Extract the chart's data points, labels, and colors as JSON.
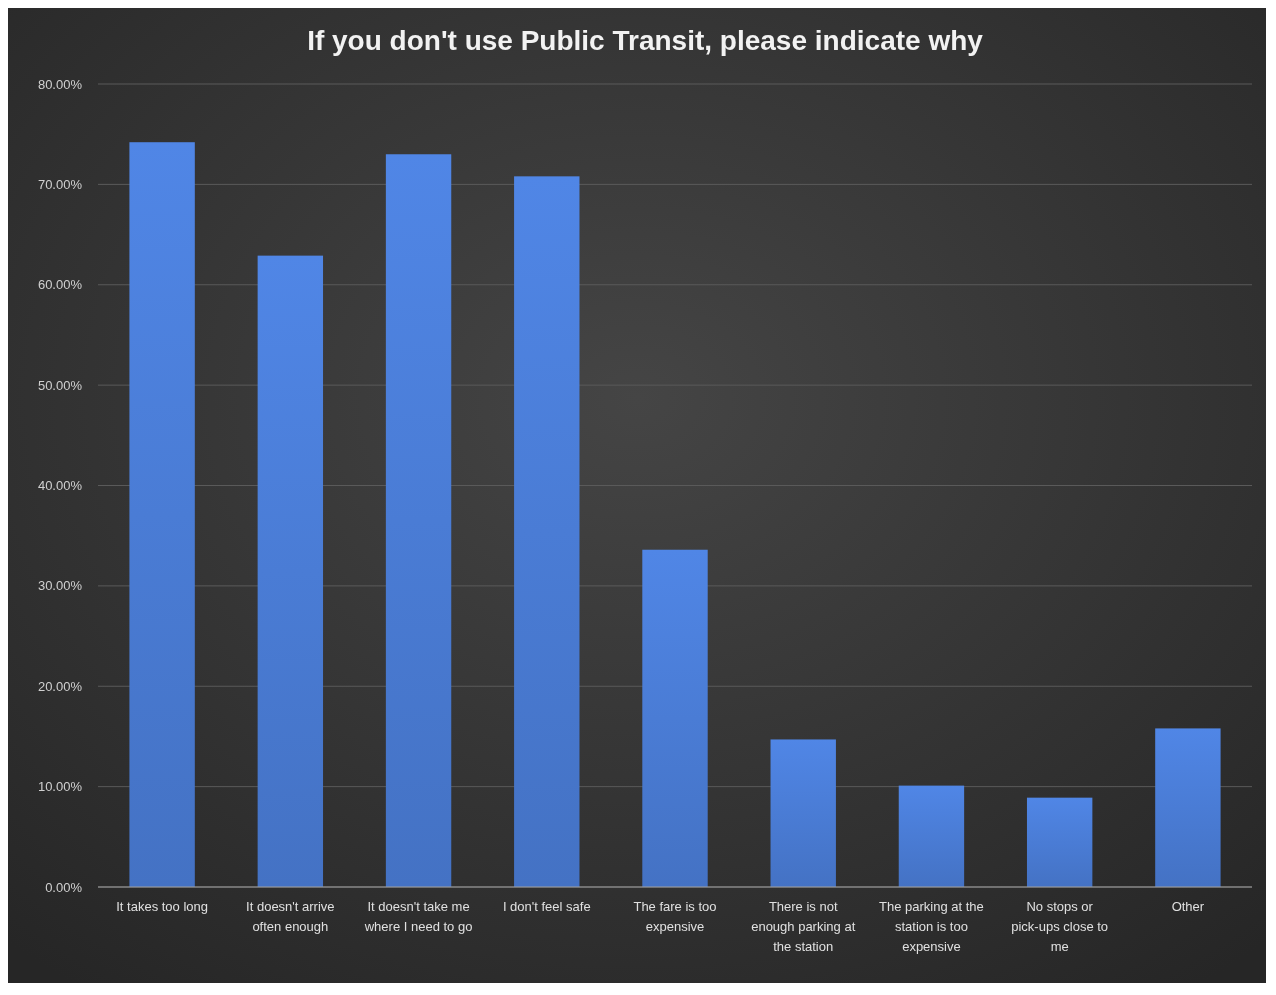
{
  "chart_data": {
    "type": "bar",
    "title": "If you don't use Public Transit, please indicate why",
    "categories": [
      "It takes too long",
      "It doesn't arrive often enough",
      "It doesn't take me where I need to go",
      "I don't feel safe",
      "The fare is too expensive",
      "There is not enough parking at the station",
      "The parking at the station is too expensive",
      "No stops or pick-ups close to me",
      "Other"
    ],
    "values": [
      74.2,
      62.9,
      73.0,
      70.8,
      33.6,
      14.7,
      10.1,
      8.9,
      15.8
    ],
    "color": "#4472c4",
    "ylim": [
      0,
      80
    ],
    "yticks": [
      {
        "value": 0,
        "label": "0.00%"
      },
      {
        "value": 10,
        "label": "10.00%"
      },
      {
        "value": 20,
        "label": "20.00%"
      },
      {
        "value": 30,
        "label": "30.00%"
      },
      {
        "value": 40,
        "label": "40.00%"
      },
      {
        "value": 50,
        "label": "50.00%"
      },
      {
        "value": 60,
        "label": "60.00%"
      },
      {
        "value": 70,
        "label": "70.00%"
      },
      {
        "value": 80,
        "label": "80.00%"
      }
    ],
    "grid": "y"
  }
}
